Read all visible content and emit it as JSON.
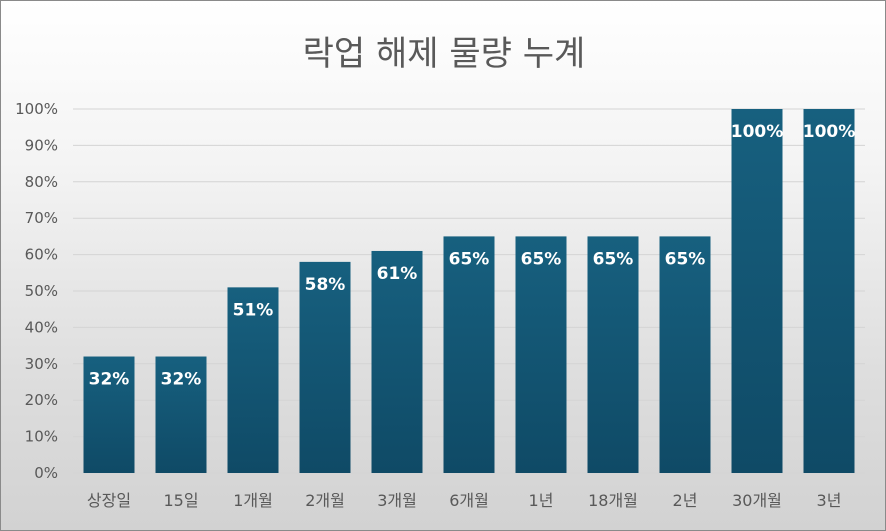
{
  "chart_data": {
    "type": "bar",
    "title": "락업 해제 물량 누계",
    "xlabel": "",
    "ylabel": "",
    "categories": [
      "상장일",
      "15일",
      "1개월",
      "2개월",
      "3개월",
      "6개월",
      "1년",
      "18개월",
      "2년",
      "30개월",
      "3년"
    ],
    "values": [
      32,
      32,
      51,
      58,
      61,
      65,
      65,
      65,
      65,
      100,
      100
    ],
    "value_labels": [
      "32%",
      "32%",
      "51%",
      "58%",
      "61%",
      "65%",
      "65%",
      "65%",
      "65%",
      "100%",
      "100%"
    ],
    "ylim": [
      0,
      100
    ],
    "yticks": [
      "0%",
      "10%",
      "20%",
      "30%",
      "40%",
      "50%",
      "60%",
      "70%",
      "80%",
      "90%",
      "100%"
    ],
    "grid": true,
    "legend": "none",
    "colors": {
      "bar_top": "#17607f",
      "bar_bottom": "#0f4a66",
      "label": "#ffffff",
      "grid": "#d4d4d4",
      "axis_text": "#595959",
      "title": "#595959"
    }
  }
}
